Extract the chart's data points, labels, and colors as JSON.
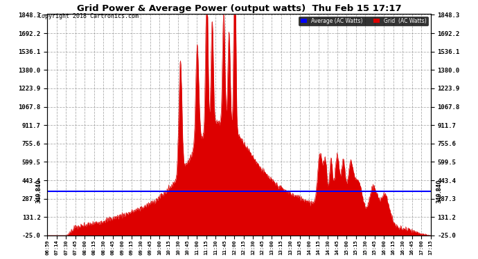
{
  "title": "Grid Power & Average Power (output watts)  Thu Feb 15 17:17",
  "copyright": "Copyright 2018 Cartronics.com",
  "average_value": 349.84,
  "y_min": -25.0,
  "y_max": 1848.3,
  "y_ticks": [
    1848.3,
    1692.2,
    1536.1,
    1380.0,
    1223.9,
    1067.8,
    911.7,
    755.6,
    599.5,
    443.4,
    287.3,
    131.2,
    -25.0
  ],
  "background_color": "#ffffff",
  "fill_color": "#dd0000",
  "avg_line_color": "#0000ff",
  "grid_color": "#999999",
  "time_labels": [
    "06:59",
    "07:14",
    "07:30",
    "07:45",
    "08:00",
    "08:15",
    "08:30",
    "08:45",
    "09:00",
    "09:15",
    "09:30",
    "09:45",
    "10:00",
    "10:15",
    "10:30",
    "10:45",
    "11:00",
    "11:15",
    "11:30",
    "11:45",
    "12:00",
    "12:15",
    "12:30",
    "12:45",
    "13:00",
    "13:15",
    "13:30",
    "13:45",
    "14:00",
    "14:15",
    "14:30",
    "14:45",
    "15:00",
    "15:15",
    "15:30",
    "15:45",
    "16:00",
    "16:15",
    "16:30",
    "16:45",
    "17:00",
    "17:15"
  ],
  "n_points": 1000,
  "seed": 7
}
